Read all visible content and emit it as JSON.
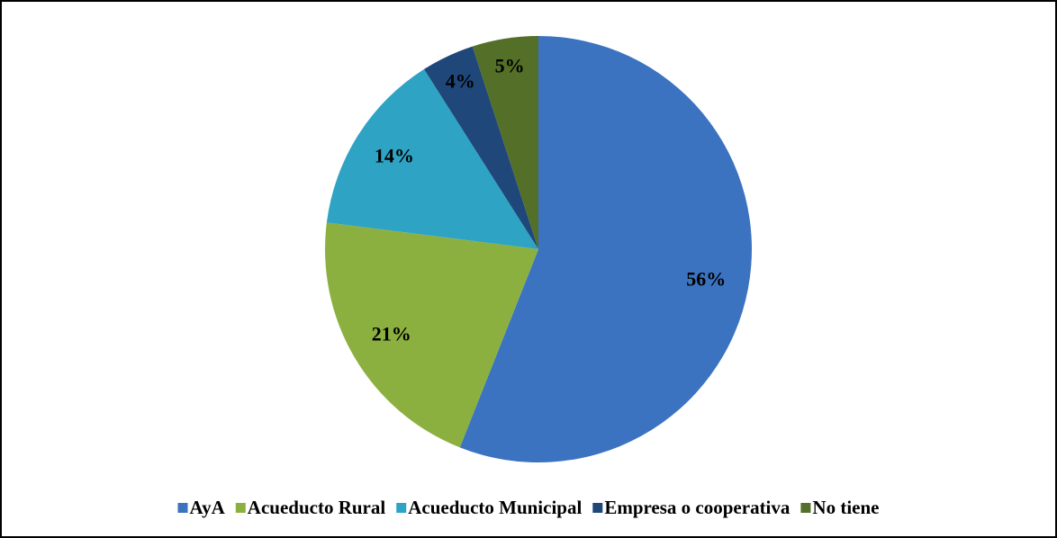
{
  "chart_data": {
    "type": "pie",
    "categories": [
      "AyA",
      "Acueducto Rural",
      "Acueducto Municipal",
      "Empresa o cooperativa",
      "No tiene"
    ],
    "values": [
      56,
      21,
      14,
      4,
      5
    ],
    "value_labels": [
      "56%",
      "21%",
      "14%",
      "4%",
      "5%"
    ],
    "colors": [
      "#3b73c0",
      "#8cb040",
      "#2ea3c4",
      "#1f477a",
      "#536f28"
    ],
    "legend": "bottom"
  }
}
